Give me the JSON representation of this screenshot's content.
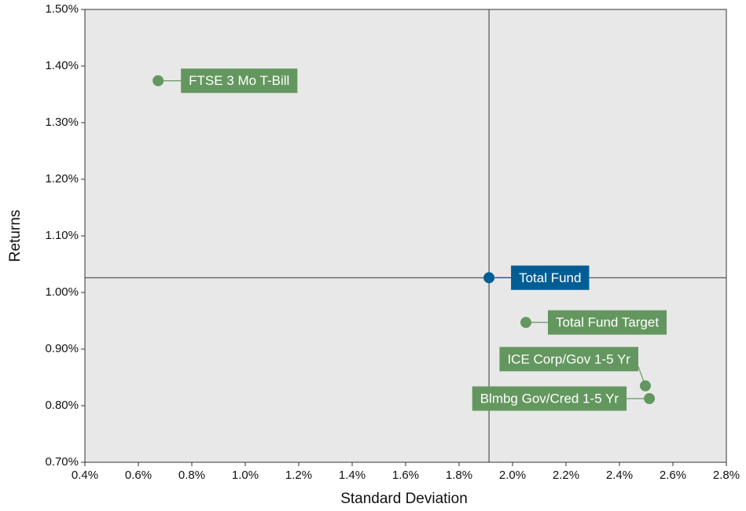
{
  "chart_data": {
    "type": "scatter",
    "x_label": "Standard Deviation",
    "y_label": "Returns",
    "xlim": [
      0.4,
      2.8
    ],
    "ylim": [
      0.7,
      1.5
    ],
    "xticks": [
      {
        "value": 0.4,
        "label": "0.4%"
      },
      {
        "value": 0.6,
        "label": "0.6%"
      },
      {
        "value": 0.8,
        "label": "0.8%"
      },
      {
        "value": 1.0,
        "label": "1.0%"
      },
      {
        "value": 1.2,
        "label": "1.2%"
      },
      {
        "value": 1.4,
        "label": "1.4%"
      },
      {
        "value": 1.6,
        "label": "1.6%"
      },
      {
        "value": 1.8,
        "label": "1.8%"
      },
      {
        "value": 2.0,
        "label": "2.0%"
      },
      {
        "value": 2.2,
        "label": "2.2%"
      },
      {
        "value": 2.4,
        "label": "2.4%"
      },
      {
        "value": 2.6,
        "label": "2.6%"
      },
      {
        "value": 2.8,
        "label": "2.8%"
      }
    ],
    "yticks": [
      {
        "value": 0.7,
        "label": "0.70%"
      },
      {
        "value": 0.8,
        "label": "0.80%"
      },
      {
        "value": 0.9,
        "label": "0.90%"
      },
      {
        "value": 1.0,
        "label": "1.00%"
      },
      {
        "value": 1.1,
        "label": "1.10%"
      },
      {
        "value": 1.2,
        "label": "1.20%"
      },
      {
        "value": 1.3,
        "label": "1.30%"
      },
      {
        "value": 1.4,
        "label": "1.40%"
      },
      {
        "value": 1.5,
        "label": "1.50%"
      }
    ],
    "series": [
      {
        "name": "FTSE 3 Mo T-Bill",
        "color": "#64975f",
        "x": [
          0.674
        ],
        "values": [
          1.374
        ]
      },
      {
        "name": "Total Fund",
        "color": "#005e95",
        "x": [
          1.912
        ],
        "values": [
          1.026
        ]
      },
      {
        "name": "Total Fund Target",
        "color": "#64975f",
        "x": [
          2.05
        ],
        "values": [
          0.947
        ]
      },
      {
        "name": "ICE Corp/Gov 1-5 Yr",
        "color": "#64975f",
        "x": [
          2.497
        ],
        "values": [
          0.835
        ]
      },
      {
        "name": "Blmbg Gov/Cred 1-5 Yr",
        "color": "#64975f",
        "x": [
          2.512
        ],
        "values": [
          0.8125
        ]
      }
    ]
  }
}
